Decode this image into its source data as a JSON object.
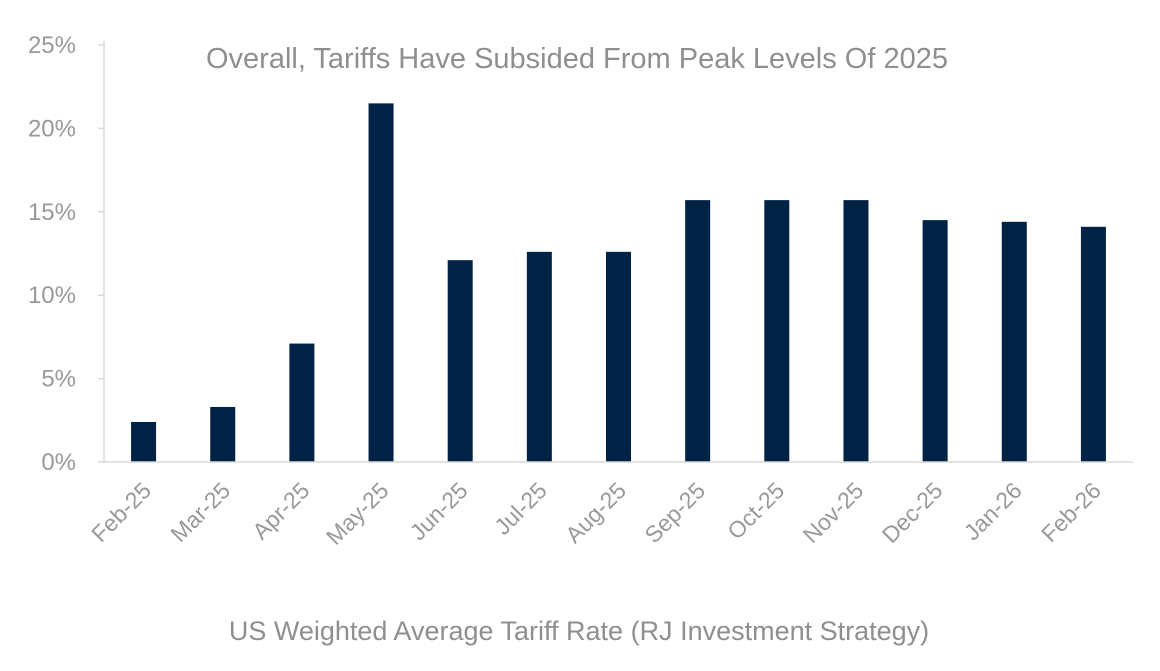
{
  "chart_data": {
    "type": "bar",
    "title": "Overall, Tariffs Have Subsided From Peak Levels Of 2025",
    "xlabel": "US Weighted Average Tariff Rate (RJ Investment Strategy)",
    "ylabel": "",
    "categories": [
      "Feb-25",
      "Mar-25",
      "Apr-25",
      "May-25",
      "Jun-25",
      "Jul-25",
      "Aug-25",
      "Sep-25",
      "Oct-25",
      "Nov-25",
      "Dec-25",
      "Jan-26",
      "Feb-26"
    ],
    "values": [
      2.4,
      3.3,
      7.1,
      21.5,
      12.1,
      12.6,
      12.6,
      15.7,
      15.7,
      15.7,
      14.5,
      14.4,
      14.1
    ],
    "ylim": [
      0,
      25
    ],
    "yticks": [
      "0%",
      "5%",
      "10%",
      "15%",
      "20%",
      "25%"
    ],
    "grid": false,
    "legend": "none",
    "colors": {
      "bar": "#002244",
      "axis": "#d9d9d9",
      "text": "#999999"
    }
  }
}
